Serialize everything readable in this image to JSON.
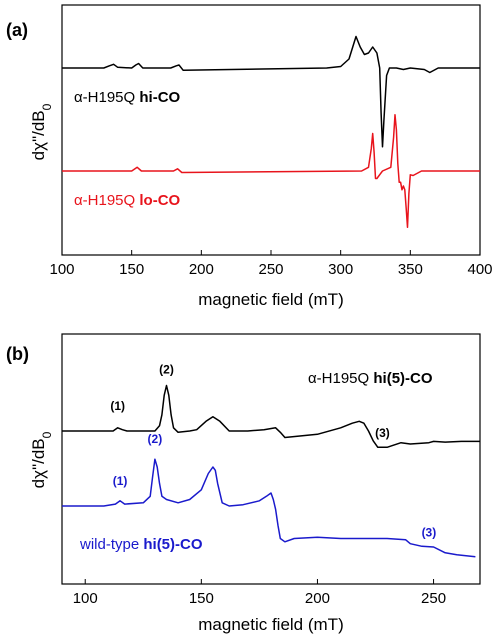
{
  "colors": {
    "black": "#000000",
    "red": "#e8141c",
    "blue": "#1a1acc"
  },
  "chart_data": [
    {
      "panel_label": "(a)",
      "type": "line",
      "xlabel": "magnetic field (mT)",
      "ylabel": "dχ\"/dB0",
      "xlim": [
        100,
        400
      ],
      "xticks": [
        100,
        150,
        200,
        250,
        300,
        350,
        400
      ],
      "series": [
        {
          "legend_prefix": "α-H195Q ",
          "legend_bold": "hi-CO",
          "color": "black",
          "offset": 1.0,
          "x": [
            100,
            130,
            134,
            137,
            140,
            150,
            153,
            155,
            158,
            178,
            182,
            184,
            187,
            290,
            300,
            306,
            311,
            314,
            317,
            320,
            323,
            326,
            328,
            329,
            330,
            331,
            333,
            335,
            340,
            345,
            350,
            360,
            364,
            366,
            370,
            400
          ],
          "y": [
            0.0,
            0.0,
            0.03,
            0.05,
            0.01,
            0.0,
            0.04,
            0.06,
            0.0,
            0.0,
            0.03,
            0.04,
            -0.03,
            0.0,
            0.02,
            0.12,
            0.42,
            0.28,
            0.18,
            0.2,
            0.28,
            0.2,
            0.0,
            -0.6,
            -1.05,
            -0.7,
            -0.1,
            0.0,
            0.0,
            -0.02,
            0.0,
            -0.02,
            -0.06,
            -0.04,
            0.0,
            0.0
          ]
        },
        {
          "legend_prefix": "α-H195Q ",
          "legend_bold": "lo-CO",
          "color": "red",
          "offset": 0.0,
          "x": [
            100,
            150,
            154,
            157,
            180,
            183,
            186,
            315,
            320,
            322,
            323,
            324,
            325,
            326,
            330,
            336,
            338,
            339,
            340,
            341,
            342,
            343,
            344,
            345,
            346,
            347,
            348,
            349,
            350,
            352,
            354,
            358,
            400
          ],
          "y": [
            0.0,
            0.0,
            0.05,
            0.0,
            0.0,
            0.03,
            -0.02,
            0.0,
            0.05,
            0.3,
            0.5,
            0.25,
            -0.1,
            -0.1,
            0.0,
            0.05,
            0.45,
            0.75,
            0.55,
            0.1,
            -0.15,
            -0.15,
            -0.25,
            -0.2,
            -0.25,
            -0.5,
            -0.75,
            -0.3,
            -0.05,
            -0.06,
            -0.04,
            0.0,
            0.0
          ]
        }
      ]
    },
    {
      "panel_label": "(b)",
      "type": "line",
      "xlabel": "magnetic field (mT)",
      "ylabel": "dχ\"/dB0",
      "xlim": [
        90,
        270
      ],
      "xticks": [
        100,
        150,
        200,
        250
      ],
      "series": [
        {
          "legend_prefix": "α-H195Q ",
          "legend_bold": "hi(5)-CO",
          "color": "black",
          "offset": 1.0,
          "x": [
            90,
            112,
            114,
            116,
            118,
            130,
            132,
            133,
            134,
            135,
            136,
            137,
            138,
            140,
            145,
            148,
            152,
            155,
            158,
            162,
            170,
            177,
            182,
            184,
            186,
            200,
            210,
            215,
            218,
            220,
            222,
            224,
            226,
            230,
            236,
            240,
            248,
            250,
            255,
            262,
            270
          ],
          "y": [
            0.0,
            0.0,
            0.05,
            0.02,
            0.0,
            0.0,
            0.08,
            0.25,
            0.55,
            0.7,
            0.55,
            0.25,
            0.05,
            -0.02,
            0.0,
            0.02,
            0.15,
            0.22,
            0.15,
            0.0,
            0.0,
            0.02,
            0.05,
            -0.02,
            -0.1,
            -0.05,
            0.05,
            0.12,
            0.15,
            0.12,
            0.0,
            -0.15,
            -0.25,
            -0.25,
            -0.18,
            -0.2,
            -0.18,
            -0.16,
            -0.17,
            -0.16,
            -0.16
          ]
        },
        {
          "legend_prefix": "wild-type ",
          "legend_bold": "hi(5)-CO",
          "color": "blue",
          "offset": 0.0,
          "x": [
            90,
            108,
            113,
            115,
            117,
            125,
            128,
            129,
            130,
            131,
            132,
            133,
            135,
            140,
            145,
            150,
            153,
            155,
            156,
            157,
            159,
            162,
            168,
            175,
            178,
            180,
            181,
            182,
            183,
            184,
            186,
            190,
            200,
            210,
            220,
            230,
            238,
            240,
            245,
            250,
            255,
            260,
            268
          ],
          "y": [
            0.0,
            0.0,
            0.03,
            0.08,
            0.03,
            0.05,
            0.15,
            0.45,
            0.72,
            0.6,
            0.35,
            0.15,
            0.1,
            0.05,
            0.1,
            0.25,
            0.5,
            0.6,
            0.55,
            0.35,
            0.05,
            0.0,
            0.02,
            0.08,
            0.15,
            0.2,
            0.1,
            -0.05,
            -0.3,
            -0.5,
            -0.55,
            -0.5,
            -0.48,
            -0.5,
            -0.5,
            -0.5,
            -0.52,
            -0.58,
            -0.62,
            -0.63,
            -0.72,
            -0.75,
            -0.78
          ]
        }
      ],
      "peak_labels": [
        {
          "text": "(1)",
          "x": 114,
          "series": 0,
          "color": "black"
        },
        {
          "text": "(2)",
          "x": 135,
          "series": 0,
          "color": "black"
        },
        {
          "text": "(3)",
          "x": 228,
          "series": 0,
          "color": "black"
        },
        {
          "text": "(1)",
          "x": 115,
          "series": 1,
          "color": "blue"
        },
        {
          "text": "(2)",
          "x": 130,
          "series": 1,
          "color": "blue"
        },
        {
          "text": "(3)",
          "x": 248,
          "series": 1,
          "color": "blue"
        }
      ]
    }
  ]
}
